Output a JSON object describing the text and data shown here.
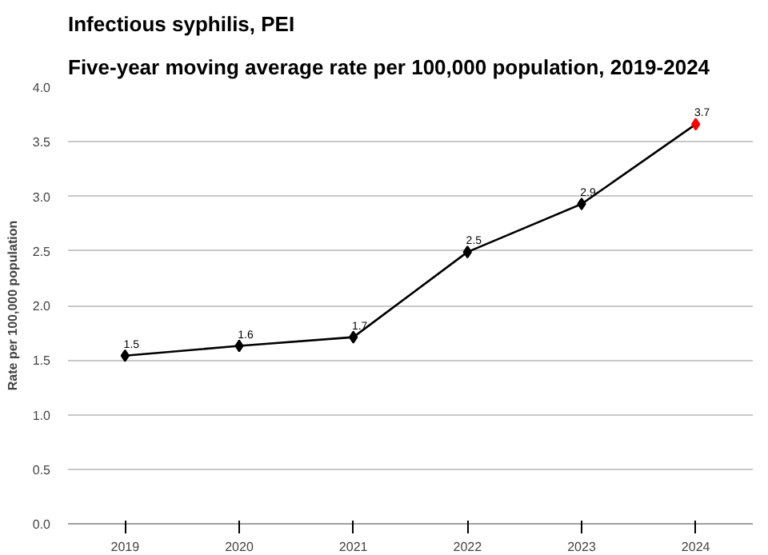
{
  "chart_data": {
    "type": "line",
    "title": "Infectious syphilis, PEI",
    "subtitle": "Five-year moving average rate per 100,000 population, 2019-2024",
    "ylabel": "Rate per 100,000 population",
    "categories": [
      "2019",
      "2020",
      "2021",
      "2022",
      "2023",
      "2024"
    ],
    "series": [
      {
        "color": "#000000",
        "colors": [
          "#000000",
          "#000000",
          "#000000",
          "#000000",
          "#000000",
          "#ff0000"
        ],
        "values": [
          1.54,
          1.63,
          1.71,
          2.49,
          2.93,
          3.66
        ],
        "value_labels": [
          "1.5",
          "1.6",
          "1.7",
          "2.5",
          "2.9",
          "3.7"
        ]
      }
    ],
    "ylim": [
      0,
      4
    ],
    "yticks": [
      {
        "value": 0,
        "label": "0.0"
      },
      {
        "value": 0.5,
        "label": "0.5"
      },
      {
        "value": 1,
        "label": "1.0"
      },
      {
        "value": 1.5,
        "label": "1.5"
      },
      {
        "value": 2,
        "label": "2.0"
      },
      {
        "value": 2.5,
        "label": "2.5"
      },
      {
        "value": 3,
        "label": "3.0"
      },
      {
        "value": 3.5,
        "label": "3.5"
      },
      {
        "value": 4,
        "label": "4.0"
      }
    ],
    "grid": "y",
    "marker": "diamond",
    "line_style": "solid"
  }
}
